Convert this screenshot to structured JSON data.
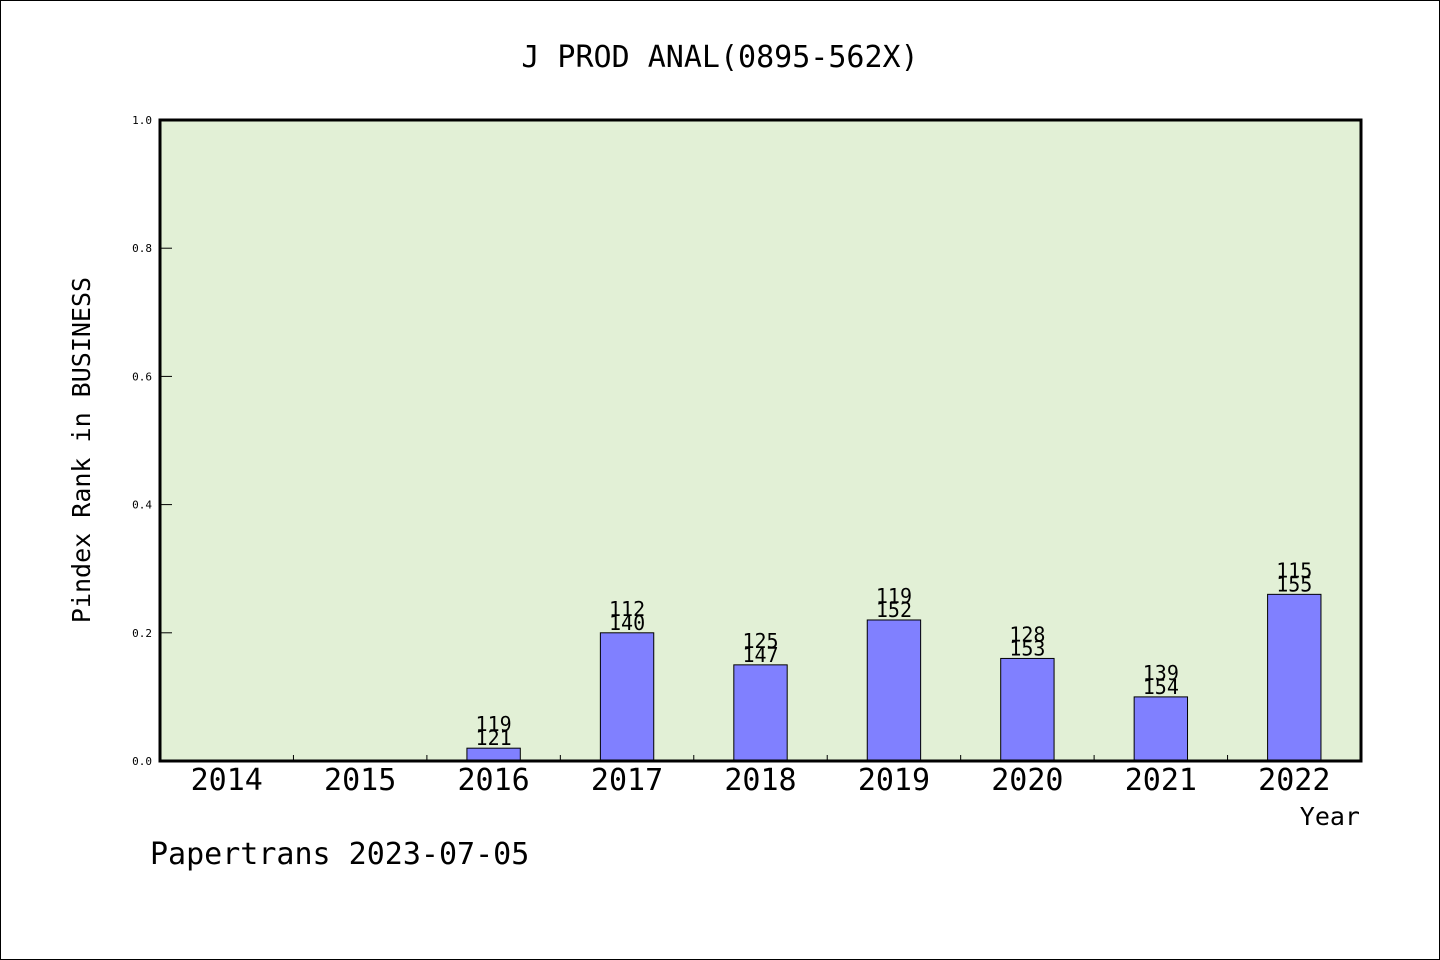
{
  "chart_data": {
    "type": "bar",
    "title": "J PROD ANAL(0895-562X)",
    "xlabel": "Year",
    "ylabel": "Pindex Rank in BUSINESS",
    "ylim": [
      0.0,
      1.0
    ],
    "yticks": [
      "0.0",
      "0.2",
      "0.4",
      "0.6",
      "0.8",
      "1.0"
    ],
    "categories": [
      "2014",
      "2015",
      "2016",
      "2017",
      "2018",
      "2019",
      "2020",
      "2021",
      "2022"
    ],
    "values": [
      0,
      0,
      0.02,
      0.2,
      0.15,
      0.22,
      0.16,
      0.1,
      0.26
    ],
    "labels_top": [
      "",
      "",
      "119",
      "112",
      "125",
      "119",
      "128",
      "139",
      "115"
    ],
    "labels_bottom": [
      "",
      "",
      "121",
      "140",
      "147",
      "152",
      "153",
      "154",
      "155"
    ],
    "grid": false,
    "colors": {
      "plot_background": "#e2f0d6",
      "bar_fill": "#8080ff",
      "bar_stroke": "#000000"
    }
  },
  "footer": "Papertrans 2023-07-05"
}
